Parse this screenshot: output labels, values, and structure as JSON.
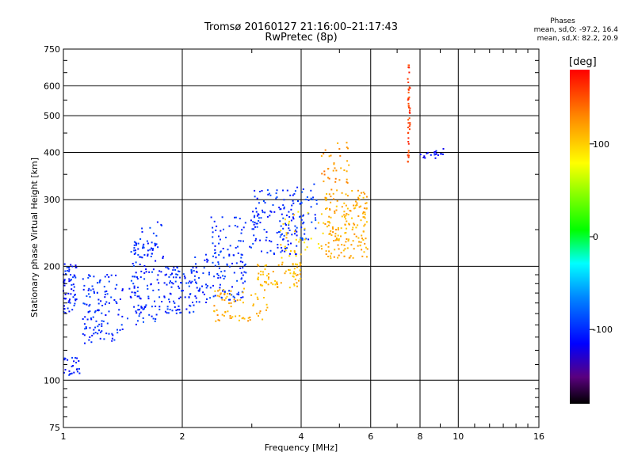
{
  "title": "Tromsø 20160127 21:16:00–21:17:43",
  "subtitle": "RwPretec (8p)",
  "phases": {
    "title": "Phases",
    "o_line": "mean, sd,O: -97.2, 16.4",
    "x_line": "mean, sd,X: 82.2, 20.9"
  },
  "colorbar": {
    "label": "[deg]",
    "ticks": [
      {
        "value": 100,
        "label": "100"
      },
      {
        "value": 0,
        "label": "0"
      },
      {
        "value": -100,
        "label": "-100"
      }
    ],
    "range": [
      -180,
      180
    ]
  },
  "chart_data": {
    "type": "scatter",
    "xlabel": "Frequency [MHz]",
    "ylabel": "Stationary phase Virtual Height [km]",
    "x_scale": "log",
    "y_scale": "log",
    "xlim": [
      1,
      16
    ],
    "ylim": [
      75,
      750
    ],
    "x_ticks": [
      {
        "value": 1,
        "label": "1"
      },
      {
        "value": 2,
        "label": "2"
      },
      {
        "value": 4,
        "label": "4"
      },
      {
        "value": 6,
        "label": "6"
      },
      {
        "value": 8,
        "label": "8"
      },
      {
        "value": 10,
        "label": "10"
      },
      {
        "value": 16,
        "label": "16"
      }
    ],
    "y_ticks": [
      {
        "value": 75,
        "label": "75"
      },
      {
        "value": 100,
        "label": "100"
      },
      {
        "value": 200,
        "label": "200"
      },
      {
        "value": 300,
        "label": "300"
      },
      {
        "value": 400,
        "label": "400"
      },
      {
        "value": 500,
        "label": "500"
      },
      {
        "value": 600,
        "label": "600"
      },
      {
        "value": 750,
        "label": "750"
      }
    ],
    "grid": true,
    "clusters": [
      {
        "phase": -105,
        "f_min": 1.0,
        "f_max": 1.08,
        "h_min": 150,
        "h_max": 205,
        "n": 60
      },
      {
        "phase": -105,
        "f_min": 1.0,
        "f_max": 1.1,
        "h_min": 103,
        "h_max": 115,
        "n": 25
      },
      {
        "phase": -100,
        "f_min": 1.12,
        "f_max": 1.42,
        "h_min": 125,
        "h_max": 190,
        "n": 120
      },
      {
        "phase": -100,
        "f_min": 1.45,
        "f_max": 1.78,
        "h_min": 140,
        "h_max": 230,
        "n": 110
      },
      {
        "phase": -100,
        "f_min": 1.5,
        "f_max": 1.8,
        "h_min": 210,
        "h_max": 265,
        "n": 30
      },
      {
        "phase": -100,
        "f_min": 1.8,
        "f_max": 2.15,
        "h_min": 150,
        "h_max": 200,
        "n": 90
      },
      {
        "phase": -100,
        "f_min": 2.15,
        "f_max": 2.9,
        "h_min": 160,
        "h_max": 215,
        "n": 110
      },
      {
        "phase": -100,
        "f_min": 2.35,
        "f_max": 3.1,
        "h_min": 210,
        "h_max": 270,
        "n": 50
      },
      {
        "phase": 115,
        "f_min": 2.4,
        "f_max": 3.3,
        "h_min": 143,
        "h_max": 175,
        "n": 70
      },
      {
        "phase": -100,
        "f_min": 3.0,
        "f_max": 3.9,
        "h_min": 215,
        "h_max": 320,
        "n": 120
      },
      {
        "phase": 110,
        "f_min": 3.1,
        "f_max": 4.0,
        "h_min": 175,
        "h_max": 205,
        "n": 70
      },
      {
        "phase": -95,
        "f_min": 3.9,
        "f_max": 4.4,
        "h_min": 235,
        "h_max": 330,
        "n": 45
      },
      {
        "phase": 100,
        "f_min": 3.5,
        "f_max": 4.6,
        "h_min": 210,
        "h_max": 280,
        "n": 40
      },
      {
        "phase": 115,
        "f_min": 4.6,
        "f_max": 5.9,
        "h_min": 210,
        "h_max": 320,
        "n": 180
      },
      {
        "phase": 125,
        "f_min": 4.5,
        "f_max": 5.3,
        "h_min": 320,
        "h_max": 430,
        "n": 35
      },
      {
        "phase": 160,
        "f_min": 7.45,
        "f_max": 7.55,
        "h_min": 375,
        "h_max": 680,
        "n": 45
      },
      {
        "phase": -110,
        "f_min": 8.0,
        "f_max": 9.2,
        "h_min": 385,
        "h_max": 410,
        "n": 20
      }
    ]
  }
}
